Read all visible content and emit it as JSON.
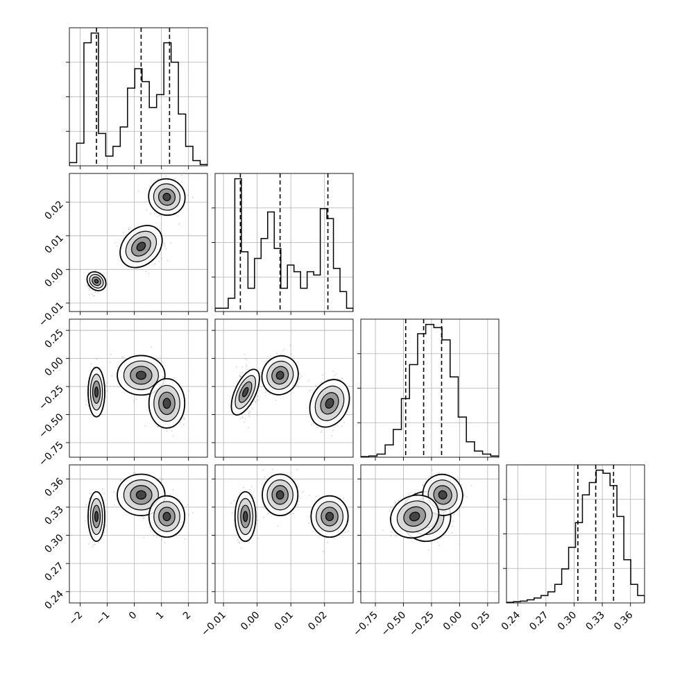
{
  "chart_data": {
    "type": "corner",
    "grid": true,
    "parameters": [
      {
        "range": [
          -2.4,
          2.7
        ],
        "ticks": [
          -2,
          -1,
          0,
          1,
          2
        ],
        "tick_labels": [
          "−2",
          "−1",
          "0",
          "1",
          "2"
        ],
        "quantiles": [
          -1.4,
          0.25,
          1.3
        ],
        "histogram": [
          5,
          35,
          190,
          205,
          50,
          15,
          30,
          60,
          120,
          150,
          130,
          90,
          110,
          190,
          160,
          80,
          30,
          8,
          2
        ],
        "modes": [
          {
            "center": -1.4,
            "spread": 0.14
          },
          {
            "center": 0.25,
            "spread": 0.4
          },
          {
            "center": 1.2,
            "spread": 0.3
          }
        ]
      },
      {
        "range": [
          -0.0125,
          0.0285
        ],
        "ticks": [
          -0.01,
          0.0,
          0.01,
          0.02
        ],
        "tick_labels": [
          "−0.01",
          "0.00",
          "0.01",
          "0.02"
        ],
        "quantiles": [
          -0.005,
          0.0068,
          0.021
        ],
        "histogram": [
          5,
          5,
          20,
          200,
          90,
          35,
          80,
          110,
          150,
          95,
          35,
          70,
          60,
          35,
          60,
          55,
          155,
          140,
          65,
          30,
          5
        ],
        "modes": [
          {
            "center": -0.0035,
            "spread": 0.0014
          },
          {
            "center": 0.0068,
            "spread": 0.0024
          },
          {
            "center": 0.0215,
            "spread": 0.0025
          }
        ]
      },
      {
        "range": [
          -0.88,
          0.35
        ],
        "ticks": [
          -0.75,
          -0.5,
          -0.25,
          0.0,
          0.25
        ],
        "tick_labels": [
          "−0.75",
          "−0.50",
          "−0.25",
          "0.00",
          "0.25"
        ],
        "quantiles": [
          -0.48,
          -0.32,
          -0.16
        ],
        "histogram": [
          1,
          2,
          5,
          20,
          45,
          95,
          150,
          200,
          215,
          210,
          190,
          130,
          65,
          25,
          10,
          5,
          2
        ],
        "modes": [
          {
            "center": -0.3,
            "spread": 0.1
          },
          {
            "center": -0.15,
            "spread": 0.08
          },
          {
            "center": -0.4,
            "spread": 0.1
          }
        ]
      },
      {
        "range": [
          0.228,
          0.375
        ],
        "ticks": [
          0.24,
          0.27,
          0.3,
          0.33,
          0.36
        ],
        "tick_labels": [
          "0.24",
          "0.27",
          "0.30",
          "0.33",
          "0.36"
        ],
        "quantiles": [
          0.304,
          0.323,
          0.342
        ],
        "histogram": [
          1,
          2,
          3,
          5,
          8,
          12,
          18,
          30,
          55,
          90,
          130,
          175,
          195,
          215,
          210,
          190,
          140,
          70,
          30,
          12
        ],
        "modes": [
          {
            "center": 0.32,
            "spread": 0.012
          },
          {
            "center": 0.343,
            "spread": 0.01
          },
          {
            "center": 0.32,
            "spread": 0.01
          }
        ]
      }
    ]
  }
}
